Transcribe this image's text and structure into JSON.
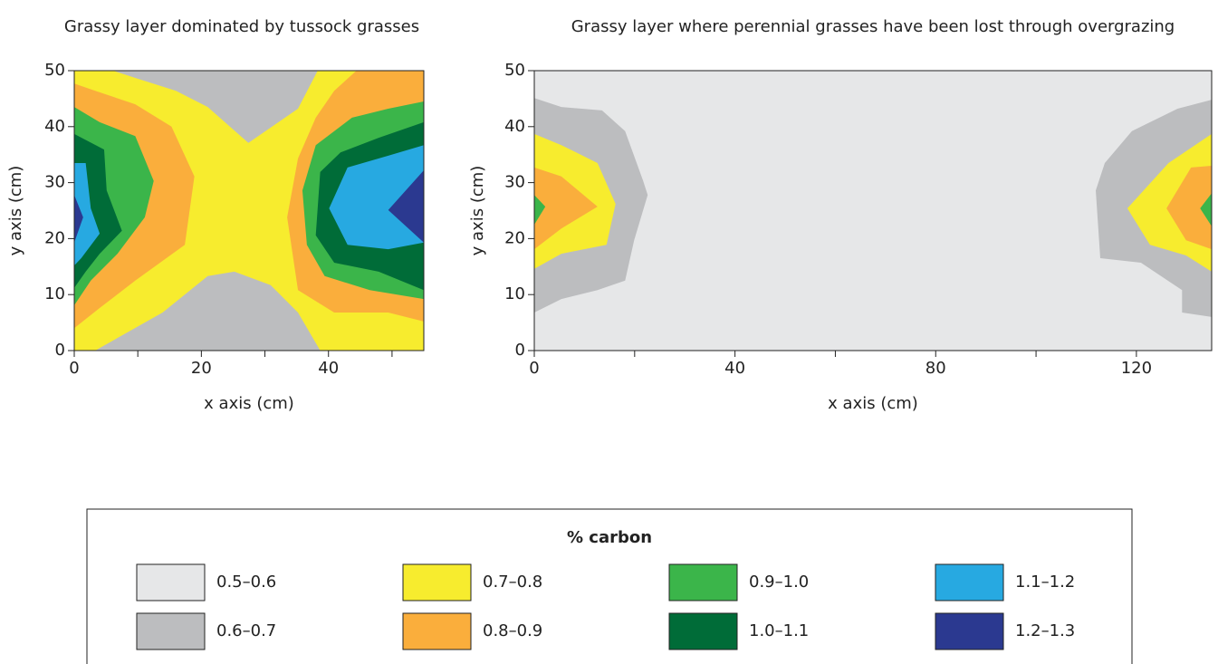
{
  "chart_data": [
    {
      "type": "contour",
      "title": "Grassy layer dominated by tussock grasses",
      "x_label": "x axis (cm)",
      "y_label": "y axis (cm)",
      "xlim": [
        0,
        55
      ],
      "ylim": [
        0,
        50
      ],
      "xticks": [
        0,
        20,
        40
      ],
      "xminor": [
        10,
        30,
        50
      ],
      "yticks": [
        0,
        10,
        20,
        30,
        40,
        50
      ],
      "background": 2,
      "regions": [
        {
          "level": 1,
          "points": [
            [
              6.1,
              50
            ],
            [
              38.3,
              50
            ],
            [
              35.2,
              43.2
            ],
            [
              27.4,
              37.1
            ],
            [
              21,
              43.5
            ],
            [
              16,
              46.4
            ],
            [
              9.6,
              48.7
            ]
          ]
        },
        {
          "level": 1,
          "points": [
            [
              3.3,
              0
            ],
            [
              13.9,
              6.8
            ],
            [
              21,
              13.3
            ],
            [
              25.2,
              14.1
            ],
            [
              30.9,
              11.7
            ],
            [
              35.2,
              6.8
            ],
            [
              38.7,
              0
            ]
          ]
        },
        {
          "level": 3,
          "points": [
            [
              0,
              47.7
            ],
            [
              3.3,
              46.4
            ],
            [
              9.6,
              44
            ],
            [
              15.3,
              40
            ],
            [
              18.9,
              31.1
            ],
            [
              17.4,
              18.9
            ],
            [
              9.6,
              12.5
            ],
            [
              4,
              7.6
            ],
            [
              0,
              4
            ]
          ]
        },
        {
          "level": 4,
          "points": [
            [
              0,
              43.5
            ],
            [
              4,
              40.8
            ],
            [
              9.6,
              38.3
            ],
            [
              12.5,
              30.3
            ],
            [
              11.1,
              23.8
            ],
            [
              6.8,
              17.3
            ],
            [
              2.6,
              12.5
            ],
            [
              0,
              8.1
            ]
          ]
        },
        {
          "level": 5,
          "points": [
            [
              0,
              38.7
            ],
            [
              4.7,
              35.9
            ],
            [
              5.1,
              28.6
            ],
            [
              7.5,
              21.4
            ],
            [
              4,
              17.3
            ],
            [
              1.8,
              14.1
            ],
            [
              0,
              11.2
            ]
          ]
        },
        {
          "level": 6,
          "points": [
            [
              0,
              33.5
            ],
            [
              1.8,
              33.5
            ],
            [
              2.6,
              25.4
            ],
            [
              4,
              20.9
            ],
            [
              1.1,
              16.5
            ],
            [
              0,
              15.2
            ]
          ]
        },
        {
          "level": 7,
          "points": [
            [
              0,
              27.8
            ],
            [
              1.4,
              23.8
            ],
            [
              0,
              19.3
            ]
          ]
        },
        {
          "level": 3,
          "points": [
            [
              44.4,
              50
            ],
            [
              55,
              50
            ],
            [
              55,
              5.2
            ],
            [
              49.4,
              6.8
            ],
            [
              40.9,
              6.8
            ],
            [
              35.2,
              10.8
            ],
            [
              33.5,
              23.8
            ],
            [
              35.2,
              34.3
            ],
            [
              38,
              41.6
            ],
            [
              40.9,
              46.4
            ]
          ]
        },
        {
          "level": 4,
          "points": [
            [
              55,
              44.5
            ],
            [
              49.4,
              43.2
            ],
            [
              43.7,
              41.6
            ],
            [
              38,
              36.7
            ],
            [
              35.9,
              28.6
            ],
            [
              36.6,
              18.9
            ],
            [
              39.4,
              13.3
            ],
            [
              46.5,
              10.8
            ],
            [
              55,
              9.2
            ]
          ]
        },
        {
          "level": 5,
          "points": [
            [
              55,
              40.8
            ],
            [
              47.9,
              38
            ],
            [
              41.9,
              35.4
            ],
            [
              38.7,
              31.9
            ],
            [
              38,
              20.6
            ],
            [
              40.9,
              15.7
            ],
            [
              47.9,
              14.1
            ],
            [
              55,
              10.8
            ]
          ]
        },
        {
          "level": 6,
          "points": [
            [
              55,
              36.7
            ],
            [
              49.4,
              34.8
            ],
            [
              43,
              32.7
            ],
            [
              40.1,
              25.4
            ],
            [
              43,
              18.9
            ],
            [
              49.4,
              18.1
            ],
            [
              55,
              19.3
            ]
          ]
        },
        {
          "level": 7,
          "points": [
            [
              55,
              32.2
            ],
            [
              49.4,
              25.1
            ],
            [
              55,
              19.3
            ]
          ]
        }
      ]
    },
    {
      "type": "contour",
      "title": "Grassy layer where perennial grasses have been lost through overgrazing",
      "x_label": "x axis (cm)",
      "y_label": "y axis (cm)",
      "xlim": [
        0,
        135
      ],
      "ylim": [
        0,
        50
      ],
      "xticks": [
        0,
        40,
        80,
        120
      ],
      "xminor": [
        20,
        60,
        100
      ],
      "yticks": [
        0,
        10,
        20,
        30,
        40,
        50
      ],
      "background": 0,
      "regions": [
        {
          "level": 1,
          "points": [
            [
              0,
              45.1
            ],
            [
              5.4,
              43.5
            ],
            [
              13.5,
              42.9
            ],
            [
              18.1,
              39.2
            ],
            [
              21.7,
              30.3
            ],
            [
              22.6,
              27.8
            ],
            [
              19.9,
              19.7
            ],
            [
              18.1,
              12.5
            ],
            [
              12.6,
              10.8
            ],
            [
              5.4,
              9.2
            ],
            [
              0,
              6.8
            ]
          ]
        },
        {
          "level": 2,
          "points": [
            [
              0,
              38.7
            ],
            [
              5.4,
              36.7
            ],
            [
              12.6,
              33.5
            ],
            [
              16.2,
              26.2
            ],
            [
              14.4,
              18.9
            ],
            [
              5.4,
              17.3
            ],
            [
              0,
              14.6
            ]
          ]
        },
        {
          "level": 3,
          "points": [
            [
              0,
              32.7
            ],
            [
              5.4,
              31.1
            ],
            [
              12.6,
              25.7
            ],
            [
              5.4,
              21.8
            ],
            [
              0,
              18.1
            ]
          ]
        },
        {
          "level": 4,
          "points": [
            [
              0,
              27.8
            ],
            [
              2.2,
              25.7
            ],
            [
              0,
              22.5
            ]
          ]
        },
        {
          "level": 1,
          "points": [
            [
              135,
              44.8
            ],
            [
              128.2,
              43.2
            ],
            [
              119.1,
              39.2
            ],
            [
              113.7,
              33.5
            ],
            [
              111.9,
              28.6
            ],
            [
              112.8,
              16.5
            ],
            [
              120.9,
              15.7
            ],
            [
              129.1,
              10.8
            ],
            [
              129.1,
              6.8
            ],
            [
              135,
              6
            ]
          ]
        },
        {
          "level": 2,
          "points": [
            [
              135,
              38.7
            ],
            [
              126.4,
              33.5
            ],
            [
              118.2,
              25.4
            ],
            [
              122.7,
              18.9
            ],
            [
              129.9,
              17
            ],
            [
              135,
              14.1
            ]
          ]
        },
        {
          "level": 3,
          "points": [
            [
              135,
              33
            ],
            [
              130.9,
              32.7
            ],
            [
              126,
              25.4
            ],
            [
              129.9,
              19.7
            ],
            [
              135,
              18.1
            ]
          ]
        },
        {
          "level": 4,
          "points": [
            [
              135,
              28.1
            ],
            [
              132.7,
              25.4
            ],
            [
              135,
              22.2
            ]
          ]
        }
      ]
    }
  ],
  "legend": {
    "title": "% carbon",
    "items": [
      {
        "label": "0.5–0.6",
        "color": "#e6e7e8"
      },
      {
        "label": "0.6–0.7",
        "color": "#bcbdbf"
      },
      {
        "label": "0.7–0.8",
        "color": "#f7ec2e"
      },
      {
        "label": "0.8–0.9",
        "color": "#faae3c"
      },
      {
        "label": "0.9–1.0",
        "color": "#3bb54a"
      },
      {
        "label": "1.0–1.1",
        "color": "#006c38"
      },
      {
        "label": "1.1–1.2",
        "color": "#27a9e1"
      },
      {
        "label": "1.2–1.3",
        "color": "#2b3990"
      }
    ]
  }
}
